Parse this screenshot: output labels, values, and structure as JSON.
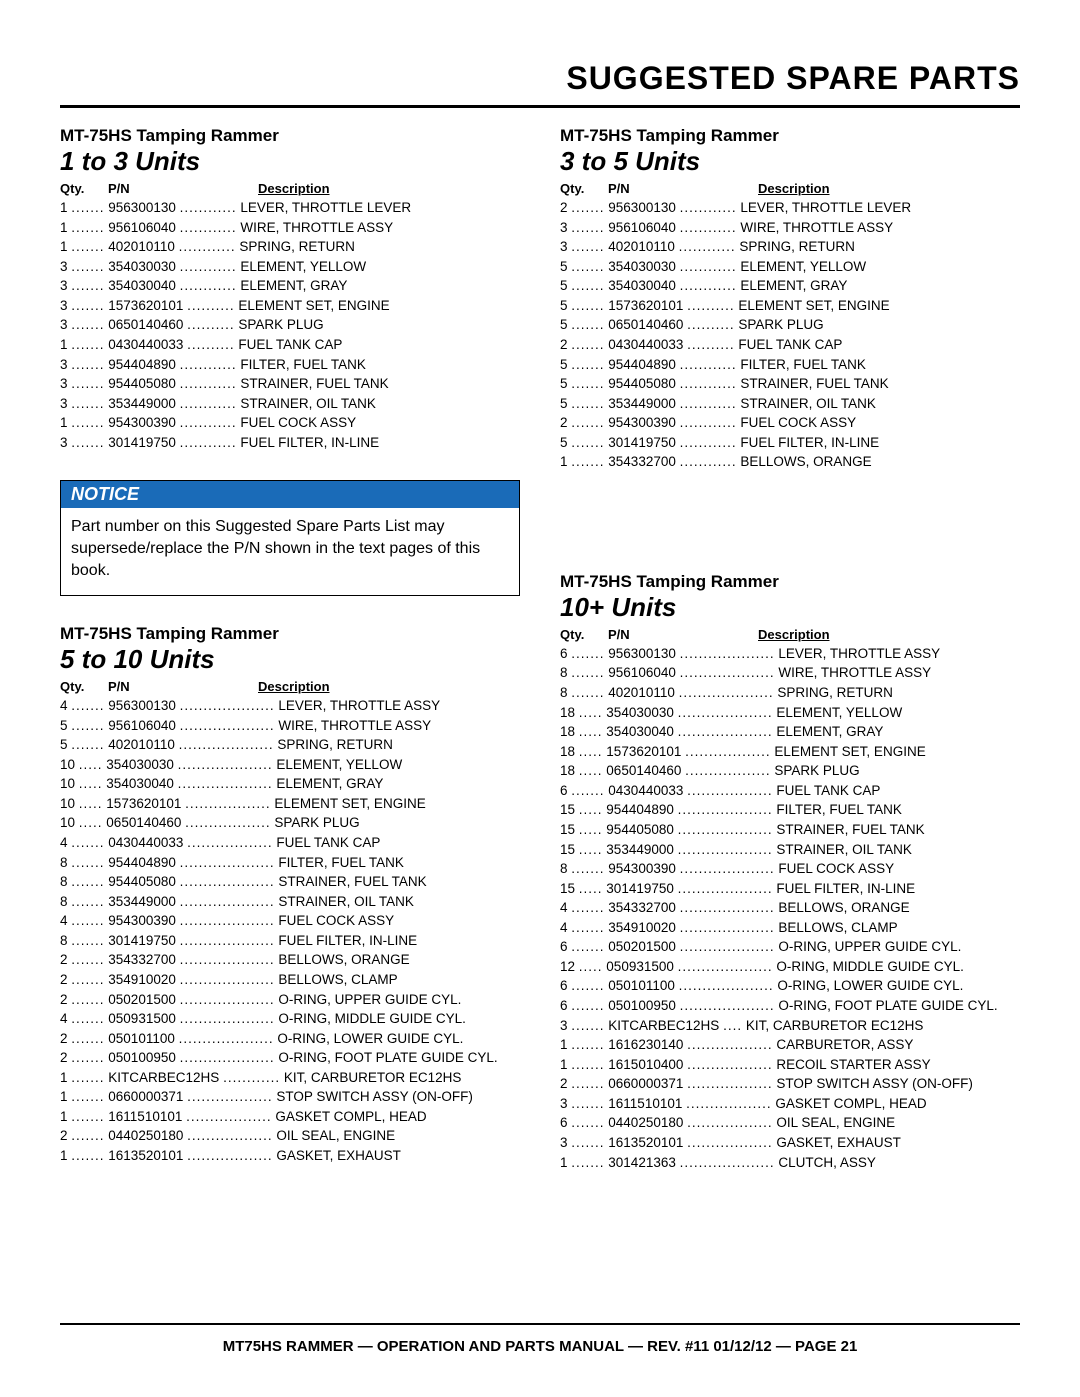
{
  "page_title": "SUGGESTED SPARE PARTS",
  "footer": "MT75HS RAMMER — OPERATION AND PARTS MANUAL — REV. #11 01/12/12 — PAGE 21",
  "notice": {
    "label": "NOTICE",
    "text": "Part number on this Suggested Spare Parts List may supersede/replace the P/N shown in the text pages of this book."
  },
  "header_labels": {
    "qty": "Qty.",
    "pn": "P/N",
    "desc": "Description"
  },
  "model_name": "MT-75HS Tamping Rammer",
  "sections": {
    "s1": {
      "units": "1 to 3 Units",
      "qty_w": 2,
      "pn_w": 11,
      "rows": [
        {
          "q": "1",
          "p": "956300130",
          "d": "LEVER, THROTTLE LEVER"
        },
        {
          "q": "1",
          "p": "956106040",
          "d": "WIRE, THROTTLE ASSY"
        },
        {
          "q": "1",
          "p": "402010110",
          "d": "SPRING, RETURN"
        },
        {
          "q": "3",
          "p": "354030030",
          "d": "ELEMENT, YELLOW"
        },
        {
          "q": "3",
          "p": "354030040",
          "d": "ELEMENT, GRAY"
        },
        {
          "q": "3",
          "p": "1573620101",
          "d": "ELEMENT SET, ENGINE"
        },
        {
          "q": "3",
          "p": "0650140460",
          "d": "SPARK PLUG"
        },
        {
          "q": "1",
          "p": "0430440033",
          "d": "FUEL TANK CAP"
        },
        {
          "q": "3",
          "p": "954404890",
          "d": "FILTER, FUEL TANK"
        },
        {
          "q": "3",
          "p": "954405080",
          "d": "STRAINER, FUEL TANK"
        },
        {
          "q": "3",
          "p": "353449000",
          "d": "STRAINER, OIL TANK"
        },
        {
          "q": "1",
          "p": "954300390",
          "d": "FUEL COCK ASSY"
        },
        {
          "q": "3",
          "p": "301419750",
          "d": "FUEL FILTER, IN-LINE"
        }
      ]
    },
    "s2": {
      "units": "3 to 5 Units",
      "qty_w": 2,
      "pn_w": 11,
      "rows": [
        {
          "q": "2",
          "p": "956300130",
          "d": "LEVER, THROTTLE LEVER"
        },
        {
          "q": "3",
          "p": "956106040",
          "d": "WIRE, THROTTLE ASSY"
        },
        {
          "q": "3",
          "p": "402010110",
          "d": "SPRING, RETURN"
        },
        {
          "q": "5",
          "p": "354030030",
          "d": "ELEMENT, YELLOW"
        },
        {
          "q": "5",
          "p": "354030040",
          "d": "ELEMENT, GRAY"
        },
        {
          "q": "5",
          "p": "1573620101",
          "d": "ELEMENT SET, ENGINE"
        },
        {
          "q": "5",
          "p": "0650140460",
          "d": "SPARK PLUG"
        },
        {
          "q": "2",
          "p": "0430440033",
          "d": "FUEL TANK CAP"
        },
        {
          "q": "5",
          "p": "954404890",
          "d": "FILTER, FUEL TANK"
        },
        {
          "q": "5",
          "p": "954405080",
          "d": "STRAINER, FUEL TANK"
        },
        {
          "q": "5",
          "p": "353449000",
          "d": "STRAINER, OIL TANK"
        },
        {
          "q": "2",
          "p": "954300390",
          "d": "FUEL COCK ASSY"
        },
        {
          "q": "5",
          "p": "301419750",
          "d": "FUEL FILTER, IN-LINE"
        },
        {
          "q": "1",
          "p": "354332700",
          "d": "BELLOWS, ORANGE"
        }
      ]
    },
    "s3": {
      "units": "5 to 10 Units",
      "qty_w": 3,
      "pn_w": 15,
      "rows": [
        {
          "q": "4",
          "p": "956300130",
          "d": "LEVER, THROTTLE ASSY"
        },
        {
          "q": "5",
          "p": "956106040",
          "d": "WIRE, THROTTLE ASSY"
        },
        {
          "q": "5",
          "p": "402010110",
          "d": "SPRING, RETURN"
        },
        {
          "q": "10",
          "p": "354030030",
          "d": "ELEMENT, YELLOW"
        },
        {
          "q": "10",
          "p": "354030040",
          "d": "ELEMENT, GRAY"
        },
        {
          "q": "10",
          "p": "1573620101",
          "d": "ELEMENT SET, ENGINE"
        },
        {
          "q": "10",
          "p": "0650140460",
          "d": "SPARK PLUG"
        },
        {
          "q": "4",
          "p": "0430440033",
          "d": "FUEL TANK CAP"
        },
        {
          "q": "8",
          "p": "954404890",
          "d": "FILTER, FUEL TANK"
        },
        {
          "q": "8",
          "p": "954405080",
          "d": "STRAINER, FUEL TANK"
        },
        {
          "q": "8",
          "p": "353449000",
          "d": "STRAINER, OIL TANK"
        },
        {
          "q": "4",
          "p": "954300390",
          "d": "FUEL COCK ASSY"
        },
        {
          "q": "8",
          "p": "301419750",
          "d": "FUEL FILTER, IN-LINE"
        },
        {
          "q": "2",
          "p": "354332700",
          "d": "BELLOWS, ORANGE"
        },
        {
          "q": "2",
          "p": "354910020",
          "d": "BELLOWS, CLAMP"
        },
        {
          "q": "2",
          "p": "050201500",
          "d": "O-RING, UPPER GUIDE CYL."
        },
        {
          "q": "4",
          "p": "050931500",
          "d": "O-RING, MIDDLE GUIDE CYL."
        },
        {
          "q": "2",
          "p": "050101100",
          "d": "O-RING, LOWER GUIDE CYL."
        },
        {
          "q": "2",
          "p": "050100950",
          "d": "O-RING, FOOT PLATE GUIDE CYL."
        },
        {
          "q": "1",
          "p": "KITCARBEC12HS",
          "d": "KIT, CARBURETOR EC12HS"
        },
        {
          "q": "1",
          "p": "0660000371",
          "d": "STOP SWITCH ASSY (ON-OFF)"
        },
        {
          "q": "1",
          "p": "1611510101",
          "d": "GASKET COMPL, HEAD"
        },
        {
          "q": "2",
          "p": "0440250180",
          "d": "OIL SEAL, ENGINE"
        },
        {
          "q": "1",
          "p": "1613520101",
          "d": "GASKET, EXHAUST"
        }
      ]
    },
    "s4": {
      "units": "10+ Units",
      "qty_w": 3,
      "pn_w": 15,
      "rows": [
        {
          "q": "6",
          "p": "956300130",
          "d": "LEVER, THROTTLE ASSY"
        },
        {
          "q": "8",
          "p": "956106040",
          "d": "WIRE, THROTTLE ASSY"
        },
        {
          "q": "8",
          "p": "402010110",
          "d": "SPRING, RETURN"
        },
        {
          "q": "18",
          "p": "354030030",
          "d": "ELEMENT, YELLOW"
        },
        {
          "q": "18",
          "p": "354030040",
          "d": "ELEMENT, GRAY"
        },
        {
          "q": "18",
          "p": "1573620101",
          "d": "ELEMENT SET, ENGINE"
        },
        {
          "q": "18",
          "p": "0650140460",
          "d": "SPARK PLUG"
        },
        {
          "q": "6",
          "p": "0430440033",
          "d": "FUEL TANK CAP"
        },
        {
          "q": "15",
          "p": "954404890",
          "d": "FILTER, FUEL TANK"
        },
        {
          "q": "15",
          "p": "954405080",
          "d": "STRAINER, FUEL TANK"
        },
        {
          "q": "15",
          "p": "353449000",
          "d": "STRAINER, OIL TANK"
        },
        {
          "q": "8",
          "p": "954300390",
          "d": "FUEL COCK ASSY"
        },
        {
          "q": "15",
          "p": "301419750",
          "d": "FUEL FILTER, IN-LINE"
        },
        {
          "q": "4",
          "p": "354332700",
          "d": "BELLOWS, ORANGE"
        },
        {
          "q": "4",
          "p": "354910020",
          "d": "BELLOWS, CLAMP"
        },
        {
          "q": "6",
          "p": "050201500",
          "d": "O-RING, UPPER GUIDE CYL."
        },
        {
          "q": "12",
          "p": "050931500",
          "d": "O-RING, MIDDLE GUIDE CYL."
        },
        {
          "q": "6",
          "p": "050101100",
          "d": "O-RING, LOWER GUIDE CYL."
        },
        {
          "q": "6",
          "p": "050100950",
          "d": "O-RING, FOOT PLATE GUIDE CYL."
        },
        {
          "q": "3",
          "p": "KITCARBEC12HS",
          "d": "KIT, CARBURETOR EC12HS",
          "tight": true
        },
        {
          "q": "1",
          "p": "1616230140",
          "d": "CARBURETOR, ASSY"
        },
        {
          "q": "1",
          "p": "1615010400",
          "d": "RECOIL STARTER ASSY"
        },
        {
          "q": "2",
          "p": "0660000371",
          "d": "STOP SWITCH ASSY (ON-OFF)"
        },
        {
          "q": "3",
          "p": "1611510101",
          "d": "GASKET COMPL, HEAD"
        },
        {
          "q": "6",
          "p": "0440250180",
          "d": "OIL SEAL, ENGINE"
        },
        {
          "q": "3",
          "p": "1613520101",
          "d": "GASKET, EXHAUST"
        },
        {
          "q": "1",
          "p": "301421363",
          "d": "CLUTCH, ASSY"
        }
      ]
    }
  }
}
